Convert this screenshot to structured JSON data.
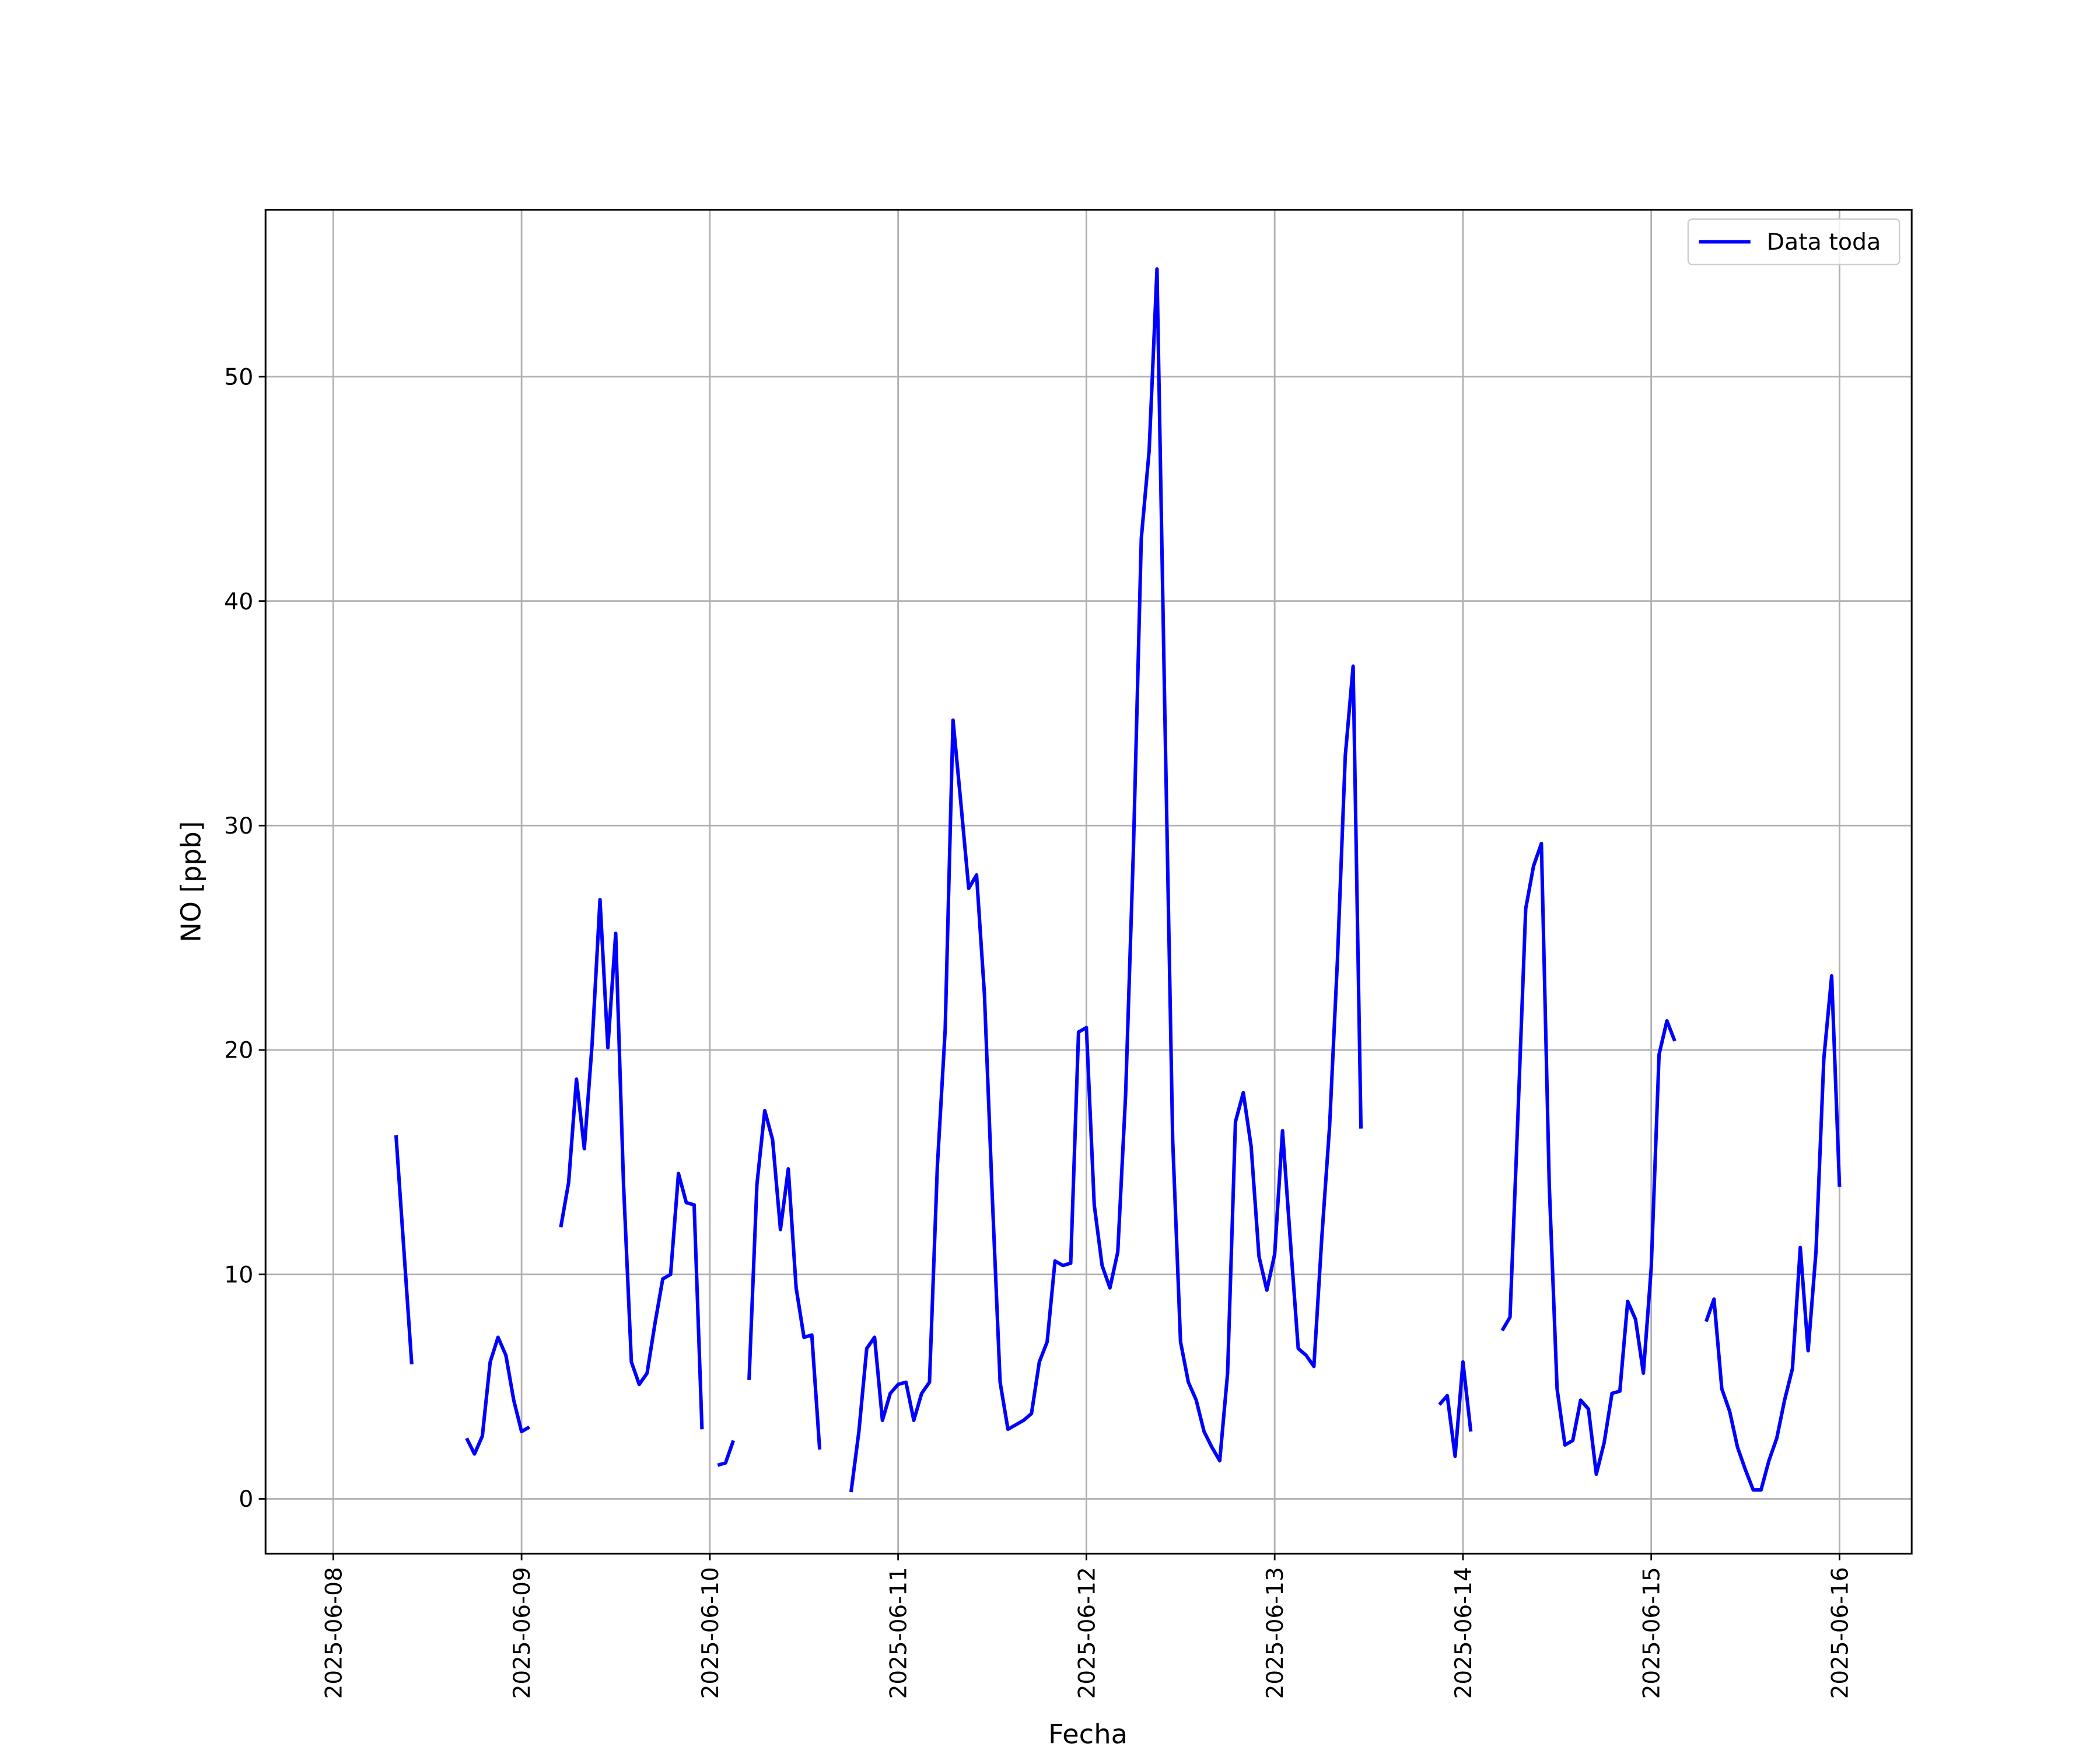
{
  "chart_data": {
    "type": "line",
    "xlabel": "Fecha",
    "ylabel": "NO [ppb]",
    "x": [
      "2025-06-08 08:00",
      "2025-06-08 09:00",
      "2025-06-08 10:00",
      "2025-06-08 11:00",
      "2025-06-08 12:00",
      "2025-06-08 13:00",
      "2025-06-08 14:00",
      "2025-06-08 15:00",
      "2025-06-08 16:00",
      "2025-06-08 17:00",
      "2025-06-08 18:00",
      "2025-06-08 19:00",
      "2025-06-08 20:00",
      "2025-06-08 21:00",
      "2025-06-08 22:00",
      "2025-06-08 23:00",
      "2025-06-09 00:00",
      "2025-06-09 01:00",
      "2025-06-09 02:00",
      "2025-06-09 03:00",
      "2025-06-09 04:00",
      "2025-06-09 05:00",
      "2025-06-09 06:00",
      "2025-06-09 07:00",
      "2025-06-09 08:00",
      "2025-06-09 09:00",
      "2025-06-09 10:00",
      "2025-06-09 11:00",
      "2025-06-09 12:00",
      "2025-06-09 13:00",
      "2025-06-09 14:00",
      "2025-06-09 15:00",
      "2025-06-09 16:00",
      "2025-06-09 17:00",
      "2025-06-09 18:00",
      "2025-06-09 19:00",
      "2025-06-09 20:00",
      "2025-06-09 21:00",
      "2025-06-09 22:00",
      "2025-06-09 23:00",
      "2025-06-10 00:00",
      "2025-06-10 01:00",
      "2025-06-10 02:00",
      "2025-06-10 03:00",
      "2025-06-10 04:00",
      "2025-06-10 05:00",
      "2025-06-10 06:00",
      "2025-06-10 07:00",
      "2025-06-10 08:00",
      "2025-06-10 09:00",
      "2025-06-10 10:00",
      "2025-06-10 11:00",
      "2025-06-10 12:00",
      "2025-06-10 13:00",
      "2025-06-10 14:00",
      "2025-06-10 15:00",
      "2025-06-10 16:00",
      "2025-06-10 17:00",
      "2025-06-10 18:00",
      "2025-06-10 19:00",
      "2025-06-10 20:00",
      "2025-06-10 21:00",
      "2025-06-10 22:00",
      "2025-06-10 23:00",
      "2025-06-11 00:00",
      "2025-06-11 01:00",
      "2025-06-11 02:00",
      "2025-06-11 03:00",
      "2025-06-11 04:00",
      "2025-06-11 05:00",
      "2025-06-11 06:00",
      "2025-06-11 07:00",
      "2025-06-11 08:00",
      "2025-06-11 09:00",
      "2025-06-11 10:00",
      "2025-06-11 11:00",
      "2025-06-11 12:00",
      "2025-06-11 13:00",
      "2025-06-11 14:00",
      "2025-06-11 15:00",
      "2025-06-11 16:00",
      "2025-06-11 17:00",
      "2025-06-11 18:00",
      "2025-06-11 19:00",
      "2025-06-11 20:00",
      "2025-06-11 21:00",
      "2025-06-11 22:00",
      "2025-06-11 23:00",
      "2025-06-12 00:00",
      "2025-06-12 01:00",
      "2025-06-12 02:00",
      "2025-06-12 03:00",
      "2025-06-12 04:00",
      "2025-06-12 05:00",
      "2025-06-12 06:00",
      "2025-06-12 07:00",
      "2025-06-12 08:00",
      "2025-06-12 09:00",
      "2025-06-12 10:00",
      "2025-06-12 11:00",
      "2025-06-12 12:00",
      "2025-06-12 13:00",
      "2025-06-12 14:00",
      "2025-06-12 15:00",
      "2025-06-12 16:00",
      "2025-06-12 17:00",
      "2025-06-12 18:00",
      "2025-06-12 19:00",
      "2025-06-12 20:00",
      "2025-06-12 21:00",
      "2025-06-12 22:00",
      "2025-06-12 23:00",
      "2025-06-13 00:00",
      "2025-06-13 01:00",
      "2025-06-13 02:00",
      "2025-06-13 03:00",
      "2025-06-13 04:00",
      "2025-06-13 05:00",
      "2025-06-13 06:00",
      "2025-06-13 07:00",
      "2025-06-13 08:00",
      "2025-06-13 09:00",
      "2025-06-13 10:00",
      "2025-06-13 11:00",
      "2025-06-13 12:00",
      "2025-06-13 13:00",
      "2025-06-13 14:00",
      "2025-06-13 15:00",
      "2025-06-13 16:00",
      "2025-06-13 17:00",
      "2025-06-13 18:00",
      "2025-06-13 19:00",
      "2025-06-13 20:00",
      "2025-06-13 21:00",
      "2025-06-13 22:00",
      "2025-06-13 23:00",
      "2025-06-14 00:00",
      "2025-06-14 01:00",
      "2025-06-14 02:00",
      "2025-06-14 03:00",
      "2025-06-14 04:00",
      "2025-06-14 05:00",
      "2025-06-14 06:00",
      "2025-06-14 07:00",
      "2025-06-14 08:00",
      "2025-06-14 09:00",
      "2025-06-14 10:00",
      "2025-06-14 11:00",
      "2025-06-14 12:00",
      "2025-06-14 13:00",
      "2025-06-14 14:00",
      "2025-06-14 15:00",
      "2025-06-14 16:00",
      "2025-06-14 17:00",
      "2025-06-14 18:00",
      "2025-06-14 19:00",
      "2025-06-14 20:00",
      "2025-06-14 21:00",
      "2025-06-14 22:00",
      "2025-06-14 23:00",
      "2025-06-15 00:00",
      "2025-06-15 01:00",
      "2025-06-15 02:00",
      "2025-06-15 03:00",
      "2025-06-15 04:00",
      "2025-06-15 05:00",
      "2025-06-15 06:00",
      "2025-06-15 07:00",
      "2025-06-15 08:00",
      "2025-06-15 09:00",
      "2025-06-15 10:00",
      "2025-06-15 11:00",
      "2025-06-15 12:00",
      "2025-06-15 13:00",
      "2025-06-15 14:00",
      "2025-06-15 15:00",
      "2025-06-15 16:00",
      "2025-06-15 17:00",
      "2025-06-15 18:00",
      "2025-06-15 19:00",
      "2025-06-15 20:00",
      "2025-06-15 21:00",
      "2025-06-15 22:00",
      "2025-06-15 23:00",
      "2025-06-16 00:00"
    ],
    "series": [
      {
        "name": "Data toda",
        "color": "#0000ff",
        "values": [
          16.2,
          11.1,
          6.0,
          null,
          null,
          null,
          null,
          null,
          null,
          2.7,
          2.0,
          2.8,
          6.1,
          7.2,
          6.4,
          4.4,
          3.0,
          3.2,
          null,
          null,
          null,
          12.1,
          14.1,
          18.7,
          15.6,
          20.3,
          26.7,
          20.1,
          25.2,
          14.0,
          6.1,
          5.1,
          5.6,
          7.8,
          9.8,
          10.0,
          14.5,
          13.2,
          13.1,
          3.1,
          null,
          1.5,
          1.6,
          2.6,
          null,
          5.3,
          14.0,
          17.3,
          16.0,
          12.0,
          14.7,
          9.4,
          7.2,
          7.3,
          2.2,
          null,
          null,
          null,
          0.3,
          3.0,
          6.7,
          7.2,
          3.5,
          4.7,
          5.1,
          5.2,
          3.5,
          4.7,
          5.2,
          14.8,
          20.9,
          34.7,
          31.0,
          27.2,
          27.8,
          22.5,
          13.5,
          5.2,
          3.1,
          3.3,
          3.5,
          3.8,
          6.1,
          7.0,
          10.6,
          10.4,
          10.5,
          20.8,
          21.0,
          13.1,
          10.4,
          9.4,
          11.0,
          18.0,
          29.0,
          42.8,
          46.7,
          54.8,
          35.0,
          16.0,
          7.0,
          5.2,
          4.4,
          3.0,
          2.3,
          1.7,
          5.6,
          16.8,
          18.1,
          15.7,
          10.8,
          9.3,
          10.9,
          16.4,
          11.5,
          6.7,
          6.4,
          5.9,
          11.6,
          16.6,
          24.0,
          33.1,
          37.1,
          16.5,
          null,
          null,
          null,
          null,
          null,
          null,
          null,
          null,
          null,
          4.2,
          4.6,
          1.9,
          6.1,
          3.0,
          null,
          null,
          null,
          7.5,
          8.1,
          17.0,
          26.3,
          28.2,
          29.2,
          14.0,
          4.9,
          2.4,
          2.6,
          4.4,
          4.0,
          1.1,
          2.5,
          4.7,
          4.8,
          8.8,
          8.0,
          5.6,
          10.3,
          19.8,
          21.3,
          20.4,
          null,
          null,
          null,
          7.9,
          8.9,
          4.9,
          3.9,
          2.3,
          1.3,
          0.4,
          0.4,
          1.7,
          2.7,
          4.4,
          5.8,
          11.2,
          6.6,
          11.0,
          19.6,
          23.3,
          13.9
        ]
      }
    ],
    "xlim": [
      "2025-06-07 15:22",
      "2025-06-16 09:12"
    ],
    "xticks": [
      "2025-06-08",
      "2025-06-09",
      "2025-06-10",
      "2025-06-11",
      "2025-06-12",
      "2025-06-13",
      "2025-06-14",
      "2025-06-15",
      "2025-06-16"
    ],
    "ylim": [
      -2.44,
      57.44
    ],
    "yticks": [
      0,
      10,
      20,
      30,
      40,
      50
    ],
    "grid": true,
    "legend": "upper right"
  }
}
